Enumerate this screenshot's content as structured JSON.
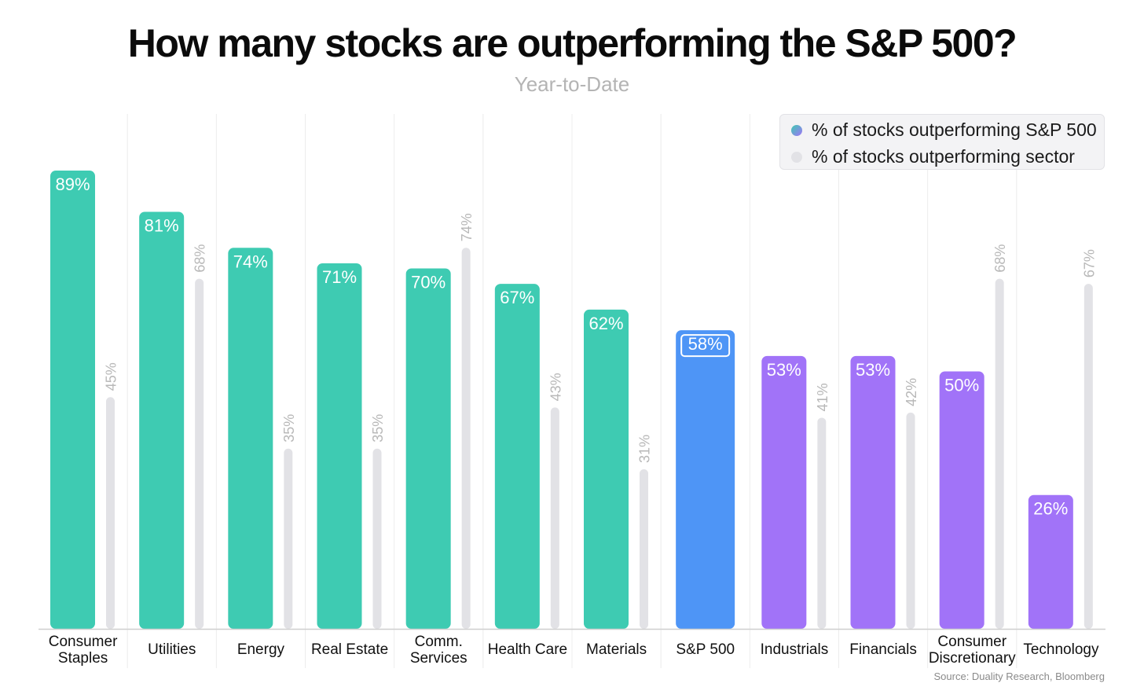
{
  "title": "How many stocks are outperforming the S&P 500?",
  "subtitle": "Year-to-Date",
  "source": "Source: Duality Research, Bloomberg",
  "legend": {
    "series1": "% of stocks outperforming S&P 500",
    "series2": "% of stocks outperforming sector"
  },
  "colors": {
    "above": "#3ecbb2",
    "benchmark": "#4e95f6",
    "below": "#a173f8",
    "sector": "#e2e2e6",
    "sector_label": "#b8b8b8"
  },
  "chart_data": {
    "type": "bar",
    "title": "How many stocks are outperforming the S&P 500?",
    "subtitle": "Year-to-Date",
    "categories": [
      [
        "Consumer",
        "Staples"
      ],
      [
        "Utilities"
      ],
      [
        "Energy"
      ],
      [
        "Real Estate"
      ],
      [
        "Comm.",
        "Services"
      ],
      [
        "Health Care"
      ],
      [
        "Materials"
      ],
      [
        "S&P 500"
      ],
      [
        "Industrials"
      ],
      [
        "Financials"
      ],
      [
        "Consumer",
        "Discretionary"
      ],
      [
        "Technology"
      ]
    ],
    "series": [
      {
        "name": "% of stocks outperforming S&P 500",
        "values": [
          89,
          81,
          74,
          71,
          70,
          67,
          62,
          58,
          53,
          53,
          50,
          26
        ],
        "labels": [
          "89%",
          "81%",
          "74%",
          "71%",
          "70%",
          "67%",
          "62%",
          "58%",
          "53%",
          "53%",
          "50%",
          "26%"
        ]
      },
      {
        "name": "% of stocks outperforming sector",
        "values": [
          45,
          68,
          35,
          35,
          74,
          43,
          31,
          null,
          41,
          42,
          68,
          67
        ],
        "labels": [
          "45%",
          "68%",
          "35%",
          "35%",
          "74%",
          "43%",
          "31%",
          null,
          "41%",
          "42%",
          "68%",
          "67%"
        ]
      }
    ],
    "ylim": [
      0,
      100
    ],
    "grid": "vertical",
    "legend_position": "top-right",
    "benchmark_category": "S&P 500"
  }
}
